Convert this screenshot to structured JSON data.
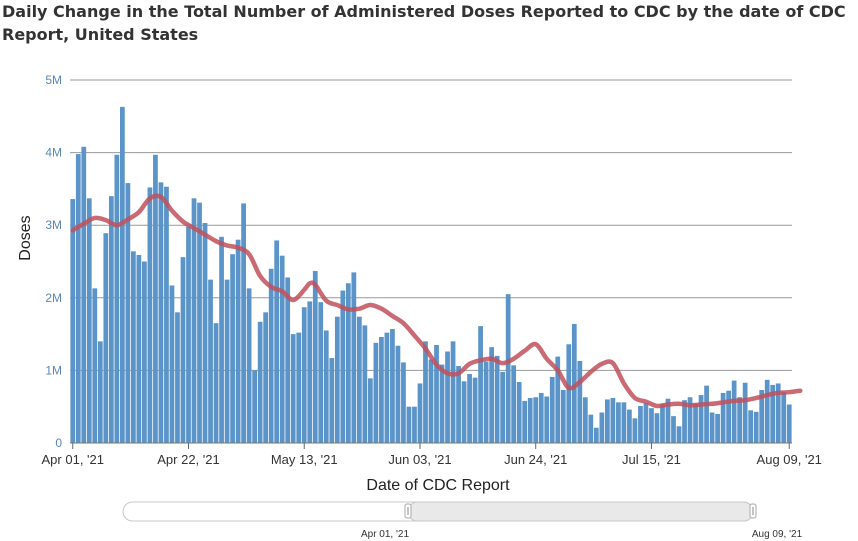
{
  "chart_data": {
    "type": "bar",
    "title": "Daily Change in the Total Number of Administered Doses Reported to CDC by the date of CDC Report, United States",
    "xlabel": "Date of CDC Report",
    "ylabel": "Doses",
    "ylim": [
      0,
      5000000
    ],
    "y_ticks": [
      {
        "value": 0,
        "label": "0"
      },
      {
        "value": 1000000,
        "label": "1M"
      },
      {
        "value": 2000000,
        "label": "2M"
      },
      {
        "value": 3000000,
        "label": "3M"
      },
      {
        "value": 4000000,
        "label": "4M"
      },
      {
        "value": 5000000,
        "label": "5M"
      }
    ],
    "x_ticks": [
      {
        "index": 0,
        "label": "Apr 01, '21"
      },
      {
        "index": 21,
        "label": "Apr 22, '21"
      },
      {
        "index": 42,
        "label": "May 13, '21"
      },
      {
        "index": 63,
        "label": "Jun 03, '21"
      },
      {
        "index": 84,
        "label": "Jun 24, '21"
      },
      {
        "index": 105,
        "label": "Jul 15, '21"
      },
      {
        "index": 130,
        "label": "Aug 09, '21"
      }
    ],
    "grid": true,
    "colors": {
      "bars": "#5b94c8",
      "bar_edge": "#3f75ab",
      "average_line": "#c0505c",
      "grid": "#999999",
      "axis_text": "#5b86b5"
    },
    "series": [
      {
        "type": "bar",
        "start_date": "2021-04-01",
        "values": [
          3360000,
          3980000,
          4080000,
          3370000,
          2130000,
          1400000,
          2890000,
          3400000,
          3970000,
          4630000,
          3580000,
          2640000,
          2590000,
          2500000,
          3520000,
          3970000,
          3590000,
          3530000,
          2170000,
          1800000,
          2560000,
          2980000,
          3370000,
          3310000,
          3030000,
          2250000,
          1650000,
          2840000,
          2250000,
          2600000,
          2800000,
          3300000,
          2130000,
          1000000,
          1670000,
          1800000,
          2400000,
          2790000,
          2580000,
          2280000,
          1500000,
          1520000,
          1870000,
          1950000,
          2370000,
          1940000,
          1550000,
          1170000,
          1740000,
          2100000,
          2200000,
          2350000,
          1740000,
          1620000,
          890000,
          1380000,
          1460000,
          1520000,
          1570000,
          1340000,
          1110000,
          500000,
          500000,
          820000,
          1400000,
          1150000,
          1350000,
          1080000,
          1260000,
          1400000,
          1060000,
          850000,
          950000,
          900000,
          1610000,
          1120000,
          1320000,
          1200000,
          980000,
          2050000,
          1070000,
          840000,
          580000,
          620000,
          630000,
          690000,
          640000,
          910000,
          1190000,
          730000,
          1360000,
          1640000,
          1130000,
          630000,
          390000,
          210000,
          420000,
          600000,
          620000,
          560000,
          560000,
          460000,
          340000,
          510000,
          550000,
          480000,
          410000,
          540000,
          610000,
          370000,
          230000,
          590000,
          630000,
          540000,
          660000,
          790000,
          420000,
          400000,
          690000,
          720000,
          860000,
          630000,
          830000,
          450000,
          430000,
          730000,
          870000,
          800000,
          820000,
          700000,
          530000
        ],
        "color": "#5b94c8"
      },
      {
        "type": "line",
        "average_points": [
          [
            0,
            2930000
          ],
          [
            2,
            3020000
          ],
          [
            4,
            3100000
          ],
          [
            6,
            3070000
          ],
          [
            8,
            3000000
          ],
          [
            10,
            3080000
          ],
          [
            12,
            3180000
          ],
          [
            14,
            3370000
          ],
          [
            16,
            3390000
          ],
          [
            18,
            3200000
          ],
          [
            20,
            3050000
          ],
          [
            22,
            2960000
          ],
          [
            24,
            2870000
          ],
          [
            26,
            2780000
          ],
          [
            28,
            2720000
          ],
          [
            30,
            2690000
          ],
          [
            32,
            2600000
          ],
          [
            34,
            2300000
          ],
          [
            36,
            2150000
          ],
          [
            38,
            2090000
          ],
          [
            40,
            1970000
          ],
          [
            42,
            2110000
          ],
          [
            43,
            2200000
          ],
          [
            44,
            2180000
          ],
          [
            46,
            1960000
          ],
          [
            48,
            1900000
          ],
          [
            50,
            1840000
          ],
          [
            52,
            1850000
          ],
          [
            54,
            1900000
          ],
          [
            56,
            1850000
          ],
          [
            58,
            1750000
          ],
          [
            60,
            1650000
          ],
          [
            62,
            1480000
          ],
          [
            64,
            1300000
          ],
          [
            66,
            1080000
          ],
          [
            68,
            960000
          ],
          [
            70,
            960000
          ],
          [
            72,
            1090000
          ],
          [
            74,
            1140000
          ],
          [
            76,
            1160000
          ],
          [
            78,
            1100000
          ],
          [
            80,
            1160000
          ],
          [
            82,
            1270000
          ],
          [
            84,
            1360000
          ],
          [
            86,
            1160000
          ],
          [
            88,
            1000000
          ],
          [
            90,
            760000
          ],
          [
            92,
            840000
          ],
          [
            94,
            980000
          ],
          [
            96,
            1090000
          ],
          [
            98,
            1100000
          ],
          [
            100,
            820000
          ],
          [
            102,
            620000
          ],
          [
            104,
            570000
          ],
          [
            106,
            510000
          ],
          [
            108,
            530000
          ],
          [
            110,
            540000
          ],
          [
            112,
            520000
          ],
          [
            114,
            530000
          ],
          [
            116,
            540000
          ],
          [
            118,
            560000
          ],
          [
            120,
            580000
          ],
          [
            122,
            590000
          ],
          [
            124,
            620000
          ],
          [
            126,
            660000
          ],
          [
            128,
            690000
          ],
          [
            130,
            700000
          ],
          [
            132,
            720000
          ]
        ],
        "color": "#c0505c"
      }
    ],
    "range_selector": {
      "start_label": "Apr 01, '21",
      "end_label": "Aug 09, '21"
    }
  }
}
